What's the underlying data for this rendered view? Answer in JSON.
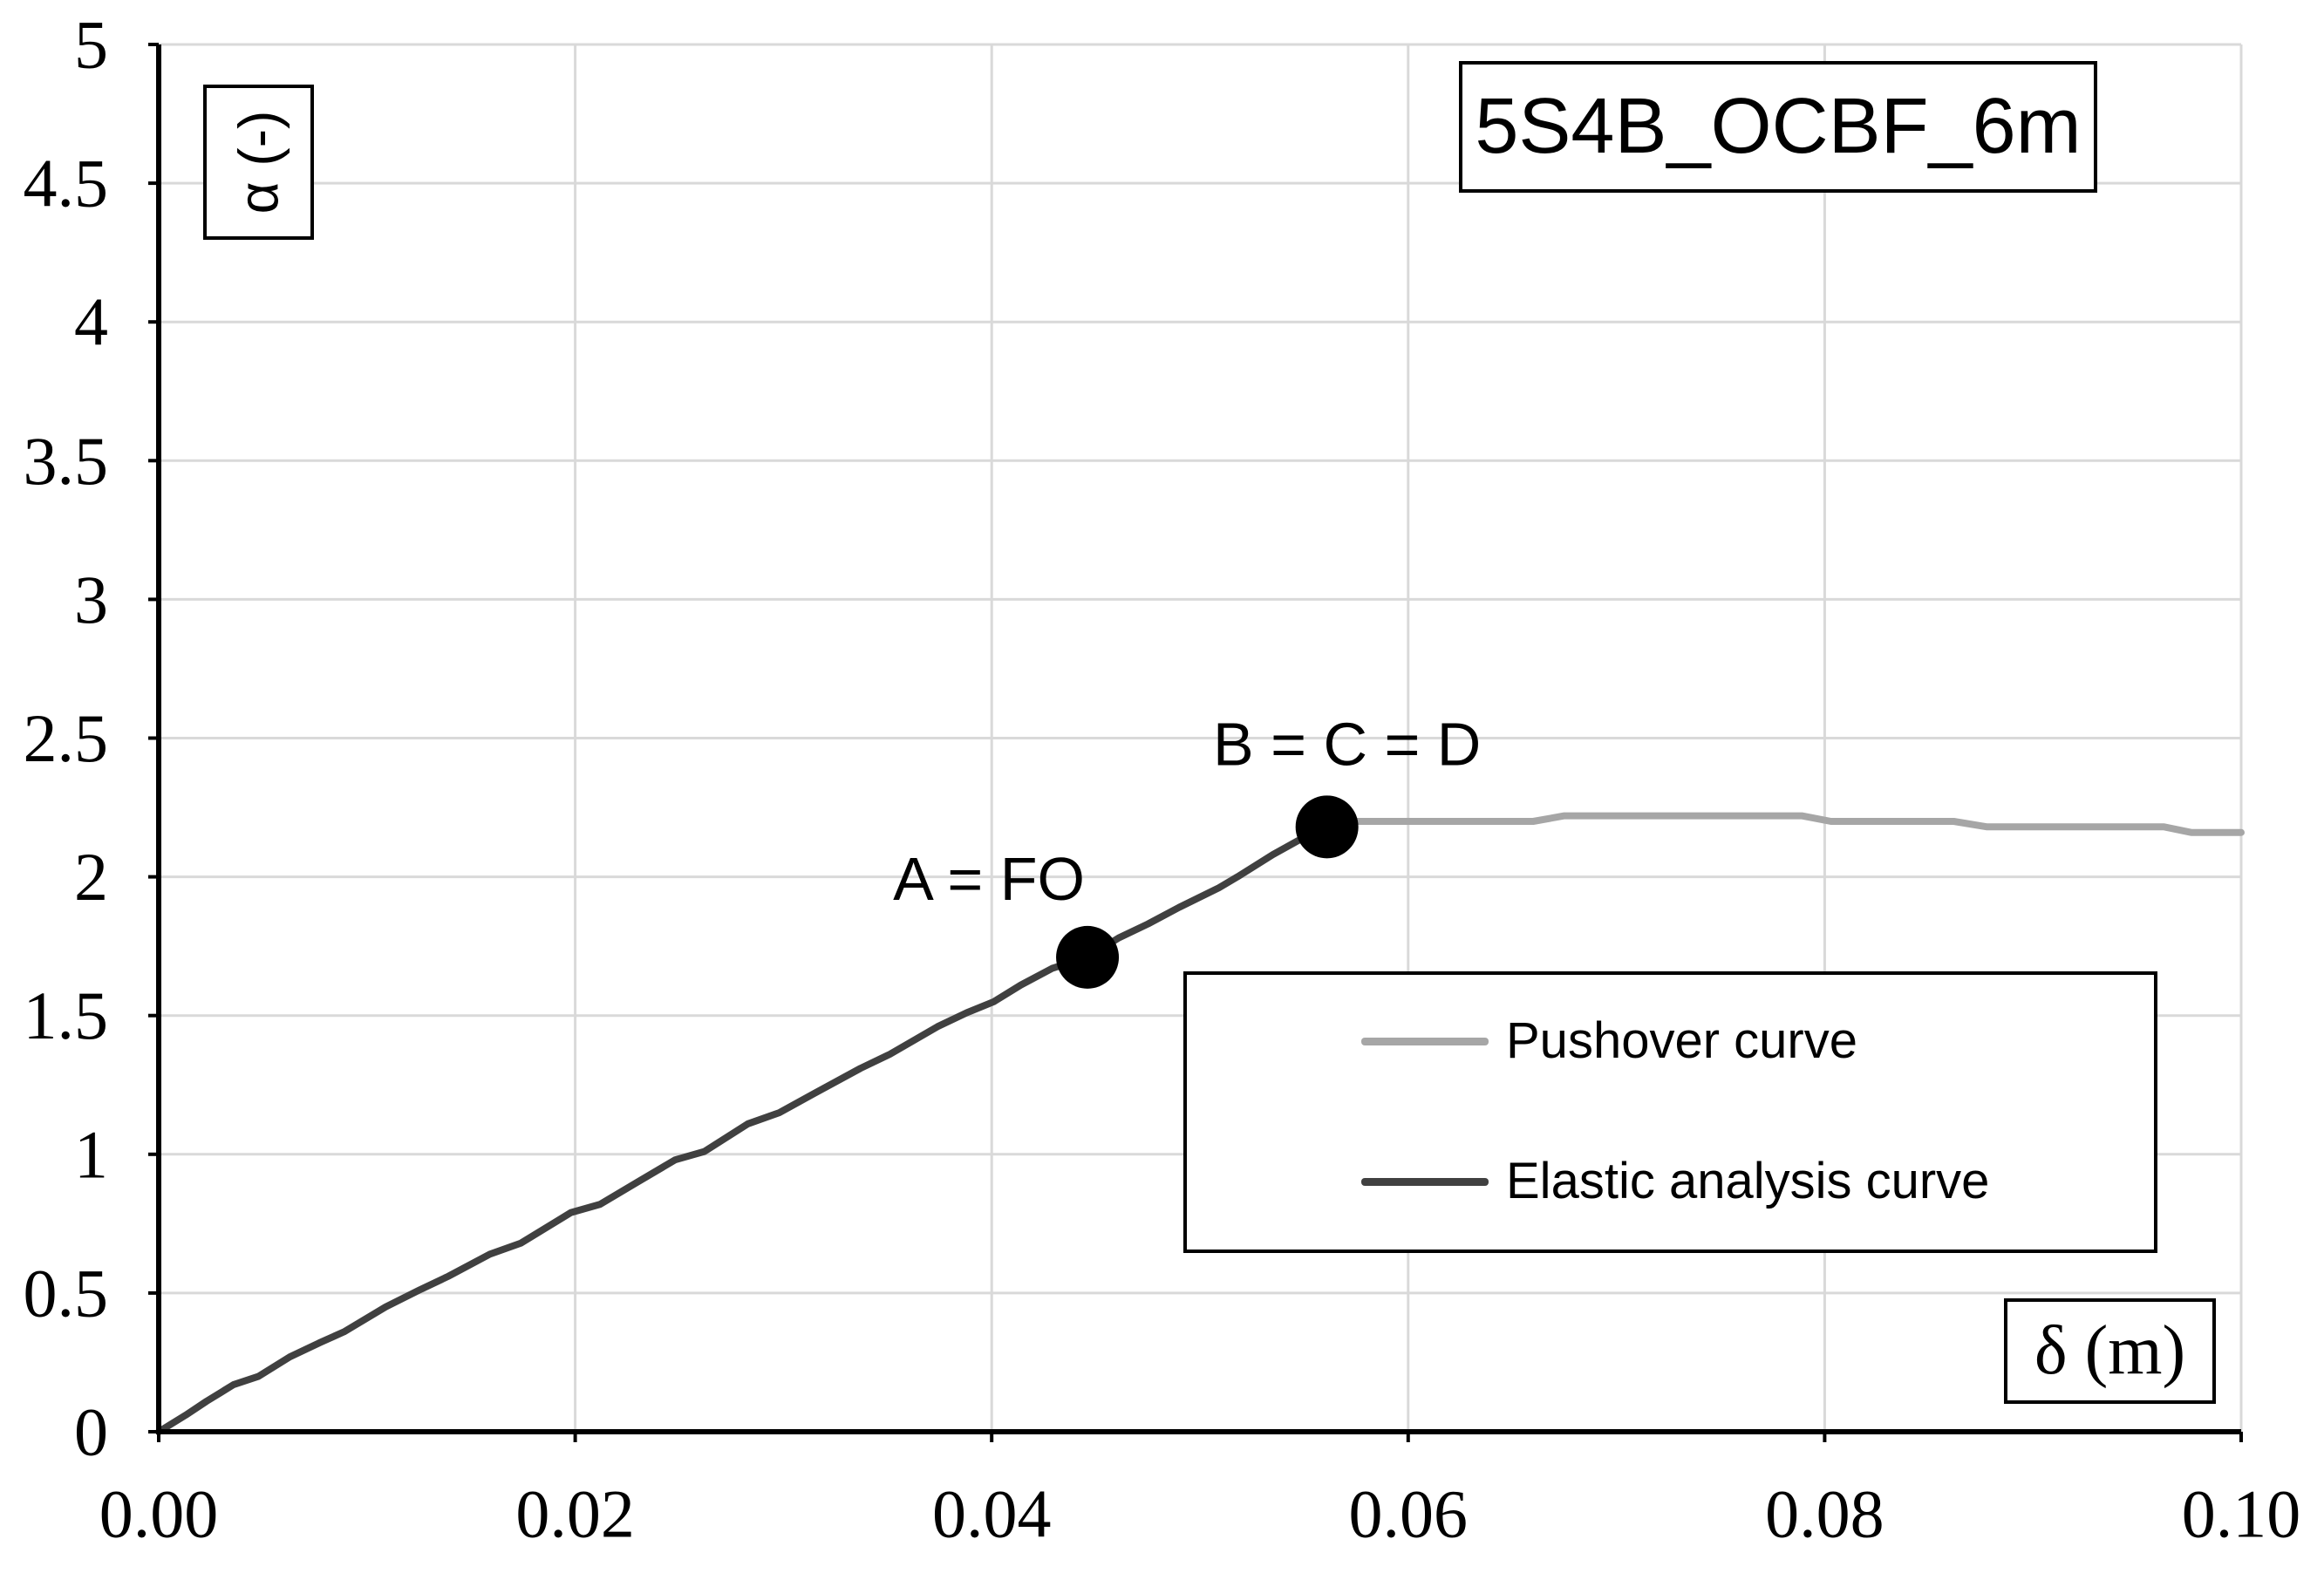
{
  "chart_data": {
    "type": "line",
    "title": "5S4B_OCBF_6m",
    "xlabel": "δ (m)",
    "ylabel": "α (-)",
    "xlim": [
      0,
      0.1
    ],
    "ylim": [
      0,
      5
    ],
    "grid": true,
    "legend_position": "right",
    "x_ticks": [
      {
        "value": 0.0,
        "label": "0.00"
      },
      {
        "value": 0.02,
        "label": "0.02"
      },
      {
        "value": 0.04,
        "label": "0.04"
      },
      {
        "value": 0.06,
        "label": "0.06"
      },
      {
        "value": 0.08,
        "label": "0.08"
      },
      {
        "value": 0.1,
        "label": "0.10"
      }
    ],
    "y_ticks": [
      {
        "value": 0,
        "label": "0"
      },
      {
        "value": 0.5,
        "label": "0.5"
      },
      {
        "value": 1,
        "label": "1"
      },
      {
        "value": 1.5,
        "label": "1.5"
      },
      {
        "value": 2,
        "label": "2"
      },
      {
        "value": 2.5,
        "label": "2.5"
      },
      {
        "value": 3,
        "label": "3"
      },
      {
        "value": 3.5,
        "label": "3.5"
      },
      {
        "value": 4,
        "label": "4"
      },
      {
        "value": 4.5,
        "label": "4.5"
      },
      {
        "value": 5,
        "label": "5"
      }
    ],
    "series": [
      {
        "name": "Pushover curve",
        "color": "#a6a6a6",
        "points": [
          [
            0.0561,
            2.18
          ],
          [
            0.0575,
            2.2
          ],
          [
            0.0586,
            2.2
          ],
          [
            0.066,
            2.2
          ],
          [
            0.0675,
            2.22
          ],
          [
            0.0789,
            2.22
          ],
          [
            0.0803,
            2.2
          ],
          [
            0.0862,
            2.2
          ],
          [
            0.0878,
            2.18
          ],
          [
            0.0963,
            2.18
          ],
          [
            0.0976,
            2.16
          ],
          [
            0.1,
            2.16
          ]
        ]
      },
      {
        "name": "Elastic analysis curve",
        "color": "#404040",
        "points": [
          [
            0.0,
            0.0
          ],
          [
            0.0013,
            0.06
          ],
          [
            0.0023,
            0.11
          ],
          [
            0.0036,
            0.17
          ],
          [
            0.0048,
            0.2
          ],
          [
            0.0063,
            0.27
          ],
          [
            0.0077,
            0.32
          ],
          [
            0.0089,
            0.36
          ],
          [
            0.0109,
            0.45
          ],
          [
            0.0125,
            0.51
          ],
          [
            0.0139,
            0.56
          ],
          [
            0.0159,
            0.64
          ],
          [
            0.0174,
            0.68
          ],
          [
            0.0198,
            0.79
          ],
          [
            0.0212,
            0.82
          ],
          [
            0.023,
            0.9
          ],
          [
            0.0248,
            0.98
          ],
          [
            0.0262,
            1.01
          ],
          [
            0.0283,
            1.11
          ],
          [
            0.0298,
            1.15
          ],
          [
            0.0315,
            1.22
          ],
          [
            0.0337,
            1.31
          ],
          [
            0.0351,
            1.36
          ],
          [
            0.0374,
            1.46
          ],
          [
            0.0388,
            1.51
          ],
          [
            0.0401,
            1.55
          ],
          [
            0.0414,
            1.61
          ],
          [
            0.0429,
            1.67
          ],
          [
            0.0446,
            1.71
          ],
          [
            0.0461,
            1.78
          ],
          [
            0.0475,
            1.83
          ],
          [
            0.049,
            1.89
          ],
          [
            0.0509,
            1.96
          ],
          [
            0.0518,
            2.0
          ],
          [
            0.0535,
            2.08
          ],
          [
            0.0547,
            2.13
          ],
          [
            0.0561,
            2.18
          ]
        ]
      }
    ],
    "annotations": [
      {
        "label": "A = FO",
        "x": 0.0446,
        "y": 1.71,
        "marker_color": "#000000"
      },
      {
        "label": "B = C = D",
        "x": 0.0561,
        "y": 2.18,
        "marker_color": "#000000"
      }
    ]
  }
}
